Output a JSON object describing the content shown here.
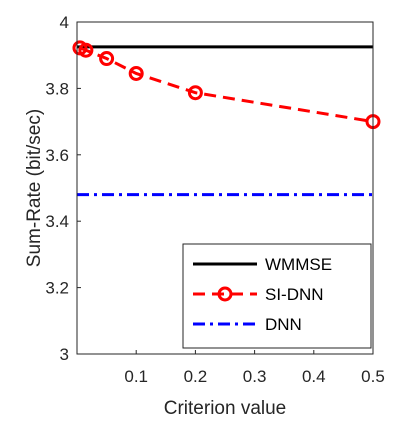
{
  "chart_data": {
    "type": "line",
    "title": "",
    "xlabel": "Criterion value",
    "ylabel": "Sum-Rate (bit/sec)",
    "xlim": [
      0,
      0.5
    ],
    "ylim": [
      3,
      4
    ],
    "xticks": [
      0.1,
      0.2,
      0.3,
      0.4,
      0.5
    ],
    "xtick_labels": [
      "0.1",
      "0.2",
      "0.3",
      "0.4",
      "0.5"
    ],
    "yticks": [
      3,
      3.2,
      3.4,
      3.6,
      3.8,
      4
    ],
    "ytick_labels": [
      "3",
      "3.2",
      "3.4",
      "3.6",
      "3.8",
      "4"
    ],
    "grid": false,
    "legend_position": "bottom-right",
    "series": [
      {
        "name": "WMMSE",
        "color": "#000000",
        "style": "solid",
        "marker": "none",
        "x": [
          0,
          0.5
        ],
        "y": [
          3.925,
          3.925
        ]
      },
      {
        "name": "SI-DNN",
        "color": "#ff0000",
        "style": "dashed",
        "marker": "circle",
        "x": [
          0.005,
          0.015,
          0.05,
          0.1,
          0.2,
          0.5
        ],
        "y": [
          3.922,
          3.915,
          3.89,
          3.845,
          3.787,
          3.7
        ]
      },
      {
        "name": "DNN",
        "color": "#0000ff",
        "style": "dashdot",
        "marker": "none",
        "x": [
          0,
          0.5
        ],
        "y": [
          3.48,
          3.48
        ]
      }
    ]
  }
}
